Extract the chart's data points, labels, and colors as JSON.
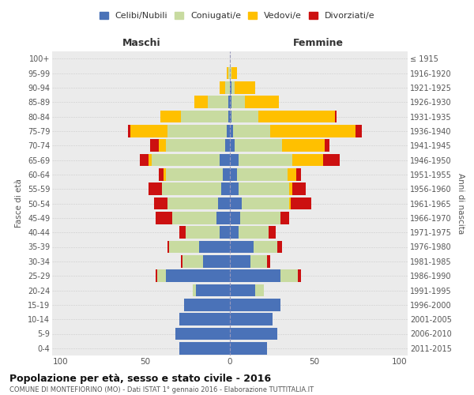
{
  "age_groups_bottom_to_top": [
    "0-4",
    "5-9",
    "10-14",
    "15-19",
    "20-24",
    "25-29",
    "30-34",
    "35-39",
    "40-44",
    "45-49",
    "50-54",
    "55-59",
    "60-64",
    "65-69",
    "70-74",
    "75-79",
    "80-84",
    "85-89",
    "90-94",
    "95-99",
    "100+"
  ],
  "birth_years_bottom_to_top": [
    "2011-2015",
    "2006-2010",
    "2001-2005",
    "1996-2000",
    "1991-1995",
    "1986-1990",
    "1981-1985",
    "1976-1980",
    "1971-1975",
    "1966-1970",
    "1961-1965",
    "1956-1960",
    "1951-1955",
    "1946-1950",
    "1941-1945",
    "1936-1940",
    "1931-1935",
    "1926-1930",
    "1921-1925",
    "1916-1920",
    "≤ 1915"
  ],
  "male": {
    "celibi": [
      30,
      32,
      30,
      27,
      20,
      38,
      16,
      18,
      6,
      8,
      7,
      5,
      4,
      6,
      3,
      2,
      1,
      1,
      0,
      0,
      0
    ],
    "coniugati": [
      0,
      0,
      0,
      0,
      2,
      5,
      12,
      18,
      20,
      26,
      30,
      35,
      34,
      40,
      35,
      35,
      28,
      12,
      3,
      1,
      0
    ],
    "vedovi": [
      0,
      0,
      0,
      0,
      0,
      0,
      0,
      0,
      0,
      0,
      0,
      0,
      1,
      2,
      4,
      22,
      12,
      8,
      3,
      1,
      0
    ],
    "divorziati": [
      0,
      0,
      0,
      0,
      0,
      1,
      1,
      1,
      4,
      10,
      8,
      8,
      3,
      5,
      5,
      1,
      0,
      0,
      0,
      0,
      0
    ]
  },
  "female": {
    "nubili": [
      22,
      28,
      25,
      30,
      15,
      30,
      12,
      14,
      5,
      6,
      7,
      5,
      4,
      5,
      3,
      2,
      1,
      1,
      1,
      0,
      0
    ],
    "coniugate": [
      0,
      0,
      0,
      0,
      5,
      10,
      10,
      14,
      18,
      24,
      28,
      30,
      30,
      32,
      28,
      22,
      16,
      8,
      2,
      1,
      0
    ],
    "vedove": [
      0,
      0,
      0,
      0,
      0,
      0,
      0,
      0,
      0,
      0,
      1,
      2,
      5,
      18,
      25,
      50,
      45,
      20,
      12,
      3,
      0
    ],
    "divorziate": [
      0,
      0,
      0,
      0,
      0,
      2,
      2,
      3,
      4,
      5,
      12,
      8,
      3,
      10,
      3,
      4,
      1,
      0,
      0,
      0,
      0
    ]
  },
  "colors": {
    "celibi_nubili": "#4a72b8",
    "coniugati": "#c8dba0",
    "vedovi": "#ffc000",
    "divorziati": "#cc1010"
  },
  "xlim": 105,
  "title": "Popolazione per età, sesso e stato civile - 2016",
  "subtitle": "COMUNE DI MONTEFIORINO (MO) - Dati ISTAT 1° gennaio 2016 - Elaborazione TUTTITALIA.IT",
  "xlabel_left": "Maschi",
  "xlabel_right": "Femmine",
  "ylabel_left": "Fasce di età",
  "ylabel_right": "Anni di nascita",
  "legend_labels": [
    "Celibi/Nubili",
    "Coniugati/e",
    "Vedovi/e",
    "Divorziati/e"
  ],
  "background_color": "#ffffff",
  "plot_bg": "#ebebeb"
}
